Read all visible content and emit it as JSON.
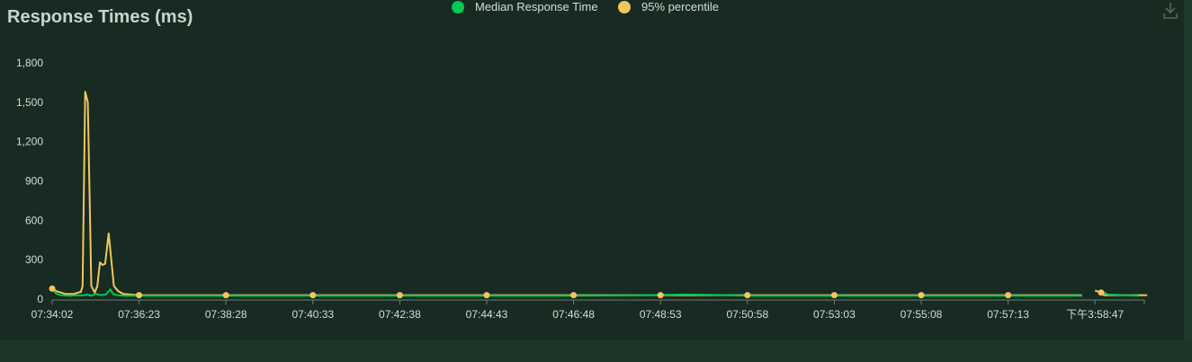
{
  "chart_data": {
    "type": "line",
    "title": "Response Times (ms)",
    "xlabel": "",
    "ylabel": "",
    "ylim": [
      0,
      1800
    ],
    "y_ticks": [
      "0",
      "300",
      "600",
      "900",
      "1,200",
      "1,500",
      "1,800"
    ],
    "y_tick_values": [
      0,
      300,
      600,
      900,
      1200,
      1500,
      1800
    ],
    "x_tick_labels": [
      "07:34:02",
      "07:36:23",
      "07:38:28",
      "07:40:33",
      "07:42:38",
      "07:44:43",
      "07:46:48",
      "07:48:53",
      "07:50:58",
      "07:53:03",
      "07:55:08",
      "07:57:13",
      "下午3:58:47"
    ],
    "legend_position": "top-center",
    "series": [
      {
        "name": "Median Response Time",
        "color": "#00c853",
        "points": [
          [
            0,
            75
          ],
          [
            0.05,
            40
          ],
          [
            0.1,
            30
          ],
          [
            0.2,
            25
          ],
          [
            0.3,
            30
          ],
          [
            0.36,
            28
          ],
          [
            0.4,
            35
          ],
          [
            0.45,
            25
          ],
          [
            0.5,
            40
          ],
          [
            0.56,
            30
          ],
          [
            0.62,
            35
          ],
          [
            0.67,
            75
          ],
          [
            0.7,
            40
          ],
          [
            0.75,
            30
          ],
          [
            0.85,
            25
          ],
          [
            1.0,
            25
          ],
          [
            2,
            25
          ],
          [
            3,
            25
          ],
          [
            4,
            25
          ],
          [
            5,
            25
          ],
          [
            6,
            25
          ],
          [
            6.8,
            30
          ],
          [
            7.3,
            35
          ],
          [
            7.8,
            30
          ],
          [
            8,
            25
          ],
          [
            9,
            25
          ],
          [
            10,
            25
          ],
          [
            11,
            25
          ],
          [
            11.85,
            25
          ],
          [
            null,
            null
          ],
          [
            12.1,
            50
          ],
          [
            12.15,
            35
          ],
          [
            12.5,
            25
          ]
        ]
      },
      {
        "name": "95% percentile",
        "color": "#f2c65c",
        "points": [
          [
            0,
            80
          ],
          [
            0.05,
            60
          ],
          [
            0.1,
            50
          ],
          [
            0.15,
            40
          ],
          [
            0.25,
            40
          ],
          [
            0.3,
            50
          ],
          [
            0.33,
            55
          ],
          [
            0.35,
            100
          ],
          [
            0.38,
            1580
          ],
          [
            0.41,
            1500
          ],
          [
            0.45,
            100
          ],
          [
            0.49,
            50
          ],
          [
            0.52,
            100
          ],
          [
            0.55,
            280
          ],
          [
            0.58,
            260
          ],
          [
            0.61,
            270
          ],
          [
            0.65,
            500
          ],
          [
            0.68,
            300
          ],
          [
            0.71,
            100
          ],
          [
            0.76,
            60
          ],
          [
            0.82,
            40
          ],
          [
            1.0,
            30
          ],
          [
            2,
            30
          ],
          [
            3,
            30
          ],
          [
            4,
            30
          ],
          [
            5,
            30
          ],
          [
            6,
            30
          ],
          [
            7,
            30
          ],
          [
            8,
            30
          ],
          [
            9,
            30
          ],
          [
            10,
            30
          ],
          [
            11,
            30
          ],
          [
            11.85,
            30
          ],
          [
            null,
            null
          ],
          [
            12.0,
            65
          ],
          [
            12.07,
            50
          ],
          [
            12.1,
            30
          ],
          [
            12.6,
            30
          ]
        ],
        "markers": [
          0,
          1,
          2,
          3,
          4,
          5,
          6,
          7,
          8,
          9,
          10,
          11,
          12.07
        ]
      }
    ]
  }
}
